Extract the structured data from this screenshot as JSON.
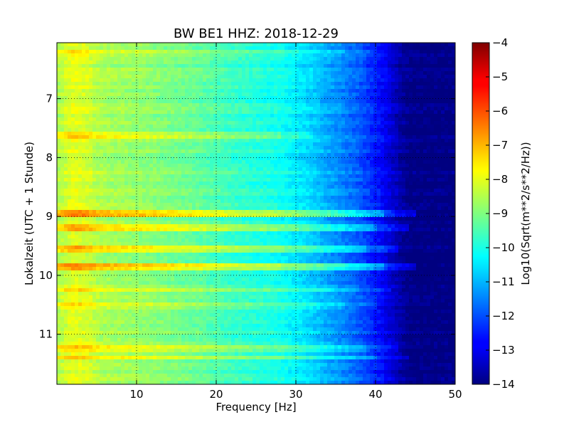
{
  "chart_data": {
    "type": "heatmap",
    "title": "BW BE1 HHZ: 2018-12-29",
    "xlabel": "Frequency [Hz]",
    "ylabel": "Lokalzeit (UTC + 1 Stunde)",
    "xlim": [
      0,
      50
    ],
    "ylim": [
      6.05,
      11.85
    ],
    "y_inverted": true,
    "grid": true,
    "colormap": "jet",
    "x_ticks": [
      "10",
      "20",
      "30",
      "40",
      "50"
    ],
    "x_tick_values": [
      10,
      20,
      30,
      40,
      50
    ],
    "y_ticks": [
      "7",
      "8",
      "9",
      "10",
      "11"
    ],
    "y_tick_values": [
      7,
      8,
      9,
      10,
      11
    ],
    "colorbar": {
      "label": "Log10(Sqrt(m**2/s**2/Hz))",
      "range": [
        -14,
        -4
      ],
      "ticks": [
        "−4",
        "−5",
        "−6",
        "−7",
        "−8",
        "−9",
        "−10",
        "−11",
        "−12",
        "−13",
        "−14"
      ],
      "tick_values": [
        -4,
        -5,
        -6,
        -7,
        -8,
        -9,
        -10,
        -11,
        -12,
        -13,
        -14
      ]
    },
    "spectrum_profile": {
      "frequency_hz": [
        0,
        1,
        2,
        3,
        4,
        5,
        6,
        8,
        10,
        12,
        15,
        18,
        20,
        22,
        25,
        28,
        30,
        32,
        33,
        34,
        35,
        36,
        37,
        38,
        39,
        40,
        41,
        42,
        43,
        44,
        45,
        50
      ],
      "level": [
        -8.6,
        -8.3,
        -8.0,
        -8.1,
        -8.2,
        -8.5,
        -8.6,
        -8.7,
        -8.8,
        -8.9,
        -9.1,
        -9.3,
        -9.5,
        -9.7,
        -9.9,
        -10.1,
        -10.4,
        -10.7,
        -10.9,
        -11.1,
        -11.3,
        -11.5,
        -11.7,
        -11.9,
        -12.2,
        -12.5,
        -12.8,
        -13.2,
        -13.6,
        -13.9,
        -14.0,
        -14.0
      ]
    },
    "bright_bands": [
      {
        "time_h": 8.95,
        "level_shift": 1.6,
        "extent_hz": 45
      },
      {
        "time_h": 9.2,
        "level_shift": 1.1,
        "extent_hz": 44
      },
      {
        "time_h": 9.55,
        "level_shift": 1.0,
        "extent_hz": 43
      },
      {
        "time_h": 9.85,
        "level_shift": 1.5,
        "extent_hz": 45
      },
      {
        "time_h": 10.25,
        "level_shift": 0.8,
        "extent_hz": 42
      },
      {
        "time_h": 11.25,
        "level_shift": 0.9,
        "extent_hz": 43
      },
      {
        "time_h": 11.4,
        "level_shift": 0.9,
        "extent_hz": 44
      },
      {
        "time_h": 7.6,
        "level_shift": 0.7,
        "extent_hz": 32
      },
      {
        "time_h": 6.2,
        "level_shift": 0.5,
        "extent_hz": 40
      },
      {
        "time_h": 10.5,
        "level_shift": 0.6,
        "extent_hz": 40
      }
    ]
  }
}
